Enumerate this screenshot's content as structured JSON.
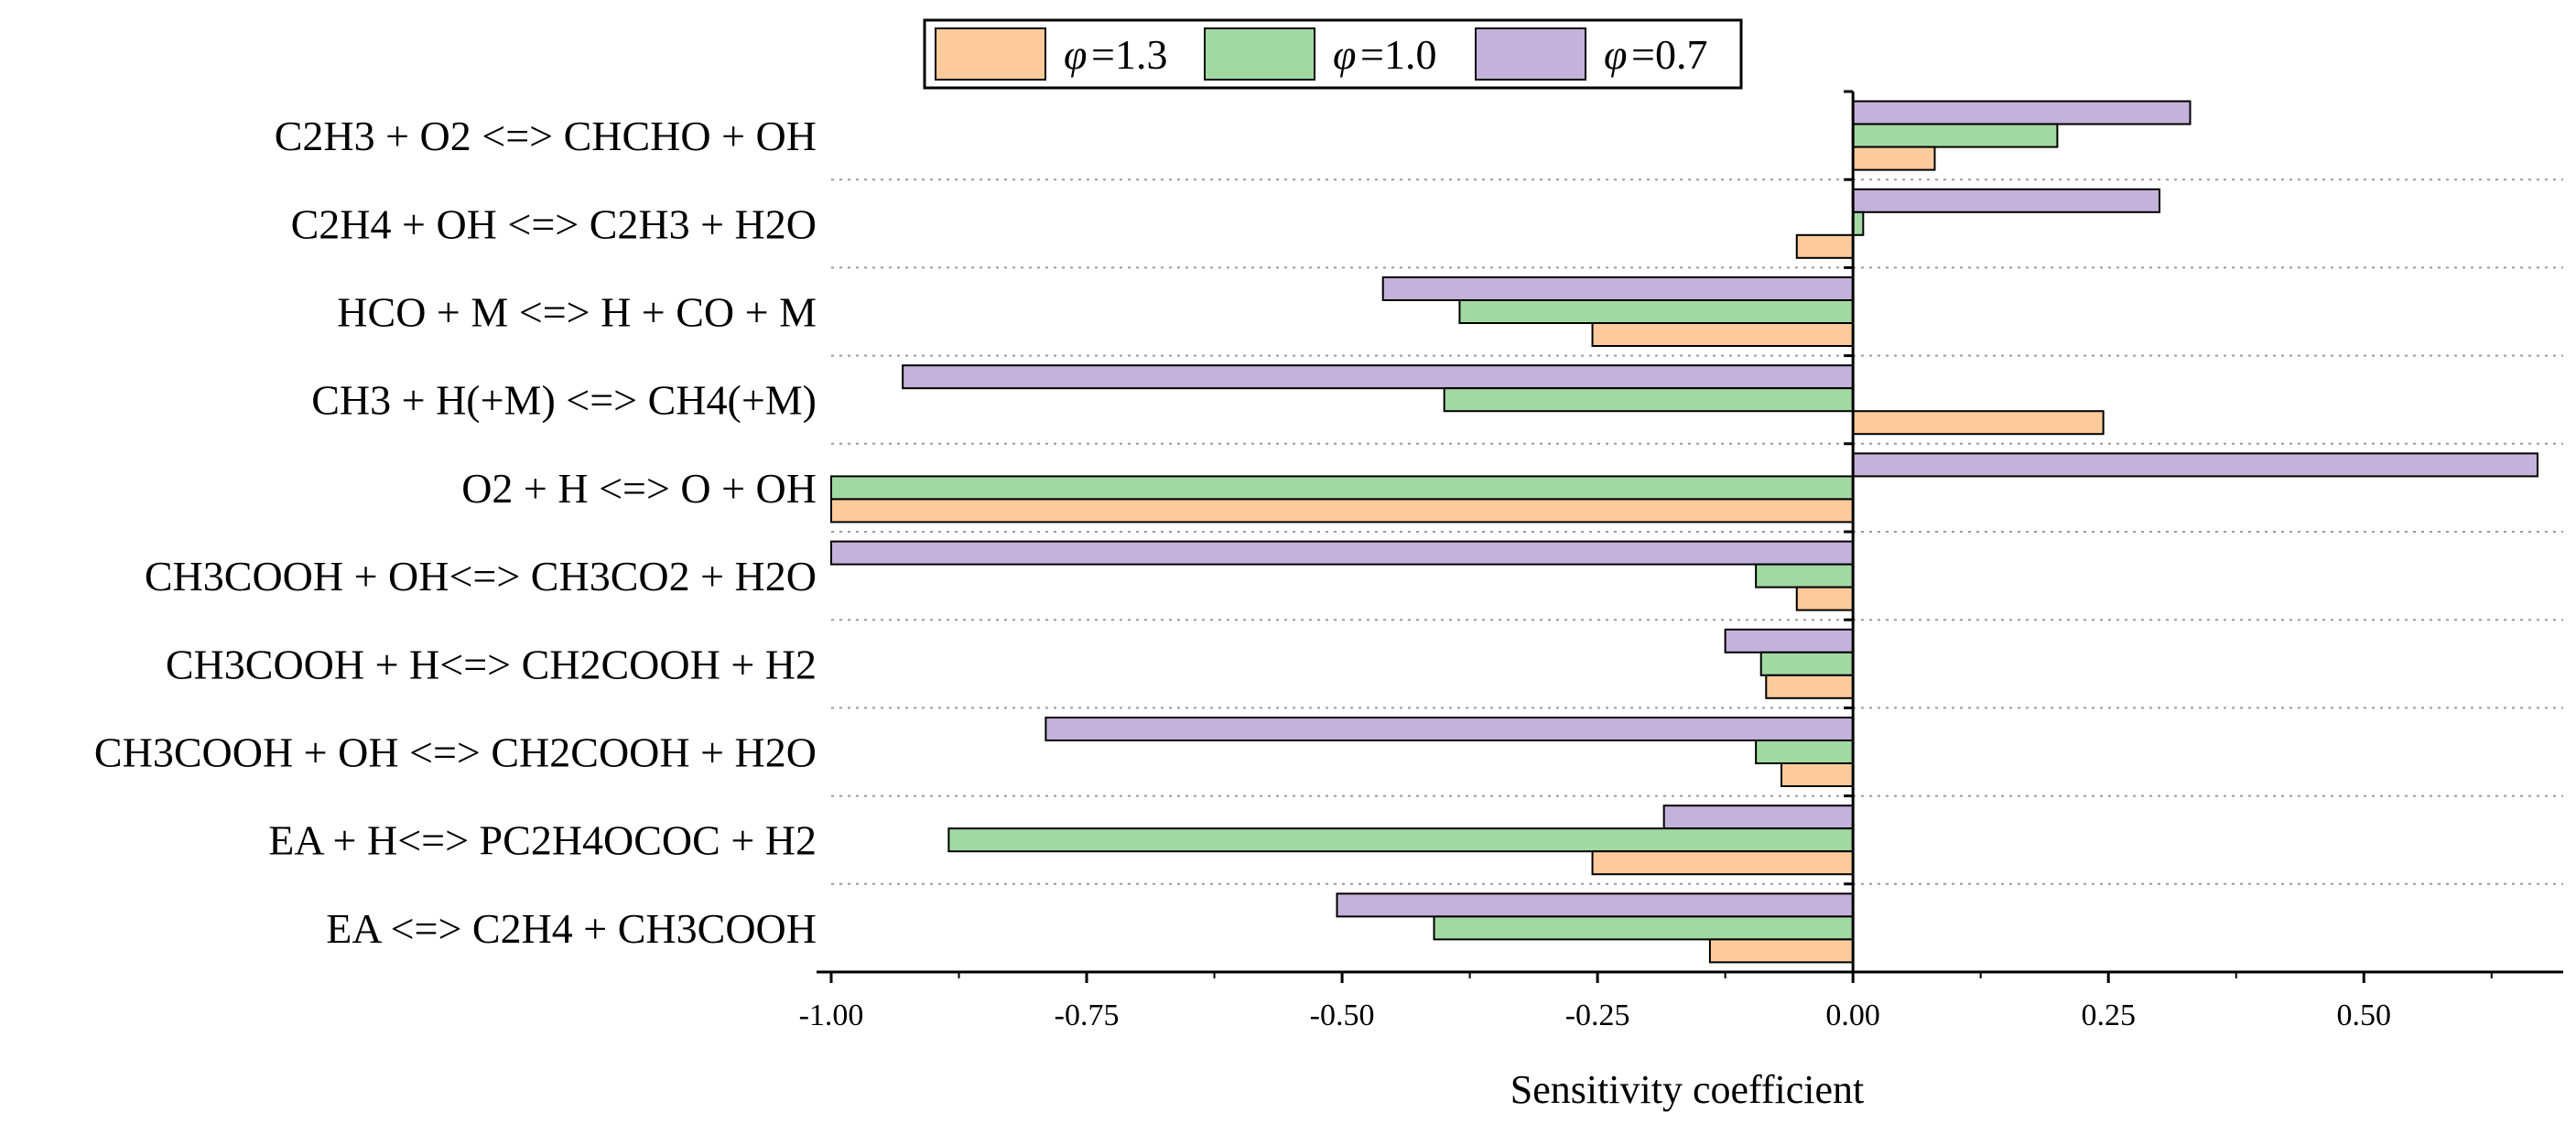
{
  "chart_data": {
    "type": "bar",
    "orientation": "horizontal",
    "title": "",
    "xlabel": "Sensitivity coefficient",
    "ylabel": "",
    "xlim": [
      -1.0,
      0.67
    ],
    "xticks": [
      -1.0,
      -0.75,
      -0.5,
      -0.25,
      0.0,
      0.25,
      0.5
    ],
    "xtick_labels": [
      "-1.00",
      "-0.75",
      "-0.50",
      "-0.25",
      "0.00",
      "0.25",
      "0.50"
    ],
    "grid": "dotted separators between categories",
    "legend_position": "top",
    "categories": [
      "C2H3 + O2 <=> CHCHO + OH",
      "C2H4 + OH <=> C2H3 + H2O",
      "HCO + M <=> H + CO + M",
      "CH3 + H(+M) <=> CH4(+M)",
      "O2 + H <=> O + OH",
      "CH3COOH + OH<=> CH3CO2 + H2O",
      "CH3COOH + H<=> CH2COOH + H2",
      "CH3COOH + OH <=> CH2COOH + H2O",
      "EA + H<=> PC2H4OCOC + H2",
      "EA <=> C2H4 + CH3COOH"
    ],
    "series": [
      {
        "name": "φ=1.3",
        "symbol": "φ",
        "value_label": "=1.3",
        "color": "#FDCB9B",
        "values": [
          0.08,
          -0.055,
          -0.255,
          0.245,
          -1.0,
          -0.055,
          -0.085,
          -0.07,
          -0.255,
          -0.14
        ]
      },
      {
        "name": "φ=1.0",
        "symbol": "φ",
        "value_label": "=1.0",
        "color": "#A2D9A2",
        "values": [
          0.2,
          0.01,
          -0.385,
          -0.4,
          -1.0,
          -0.095,
          -0.09,
          -0.095,
          -0.885,
          -0.41
        ]
      },
      {
        "name": "φ=0.7",
        "symbol": "φ",
        "value_label": "=0.7",
        "color": "#C3B2D9",
        "values": [
          0.33,
          0.3,
          -0.46,
          -0.93,
          0.67,
          -1.0,
          -0.125,
          -0.79,
          -0.185,
          -0.505
        ]
      }
    ]
  }
}
